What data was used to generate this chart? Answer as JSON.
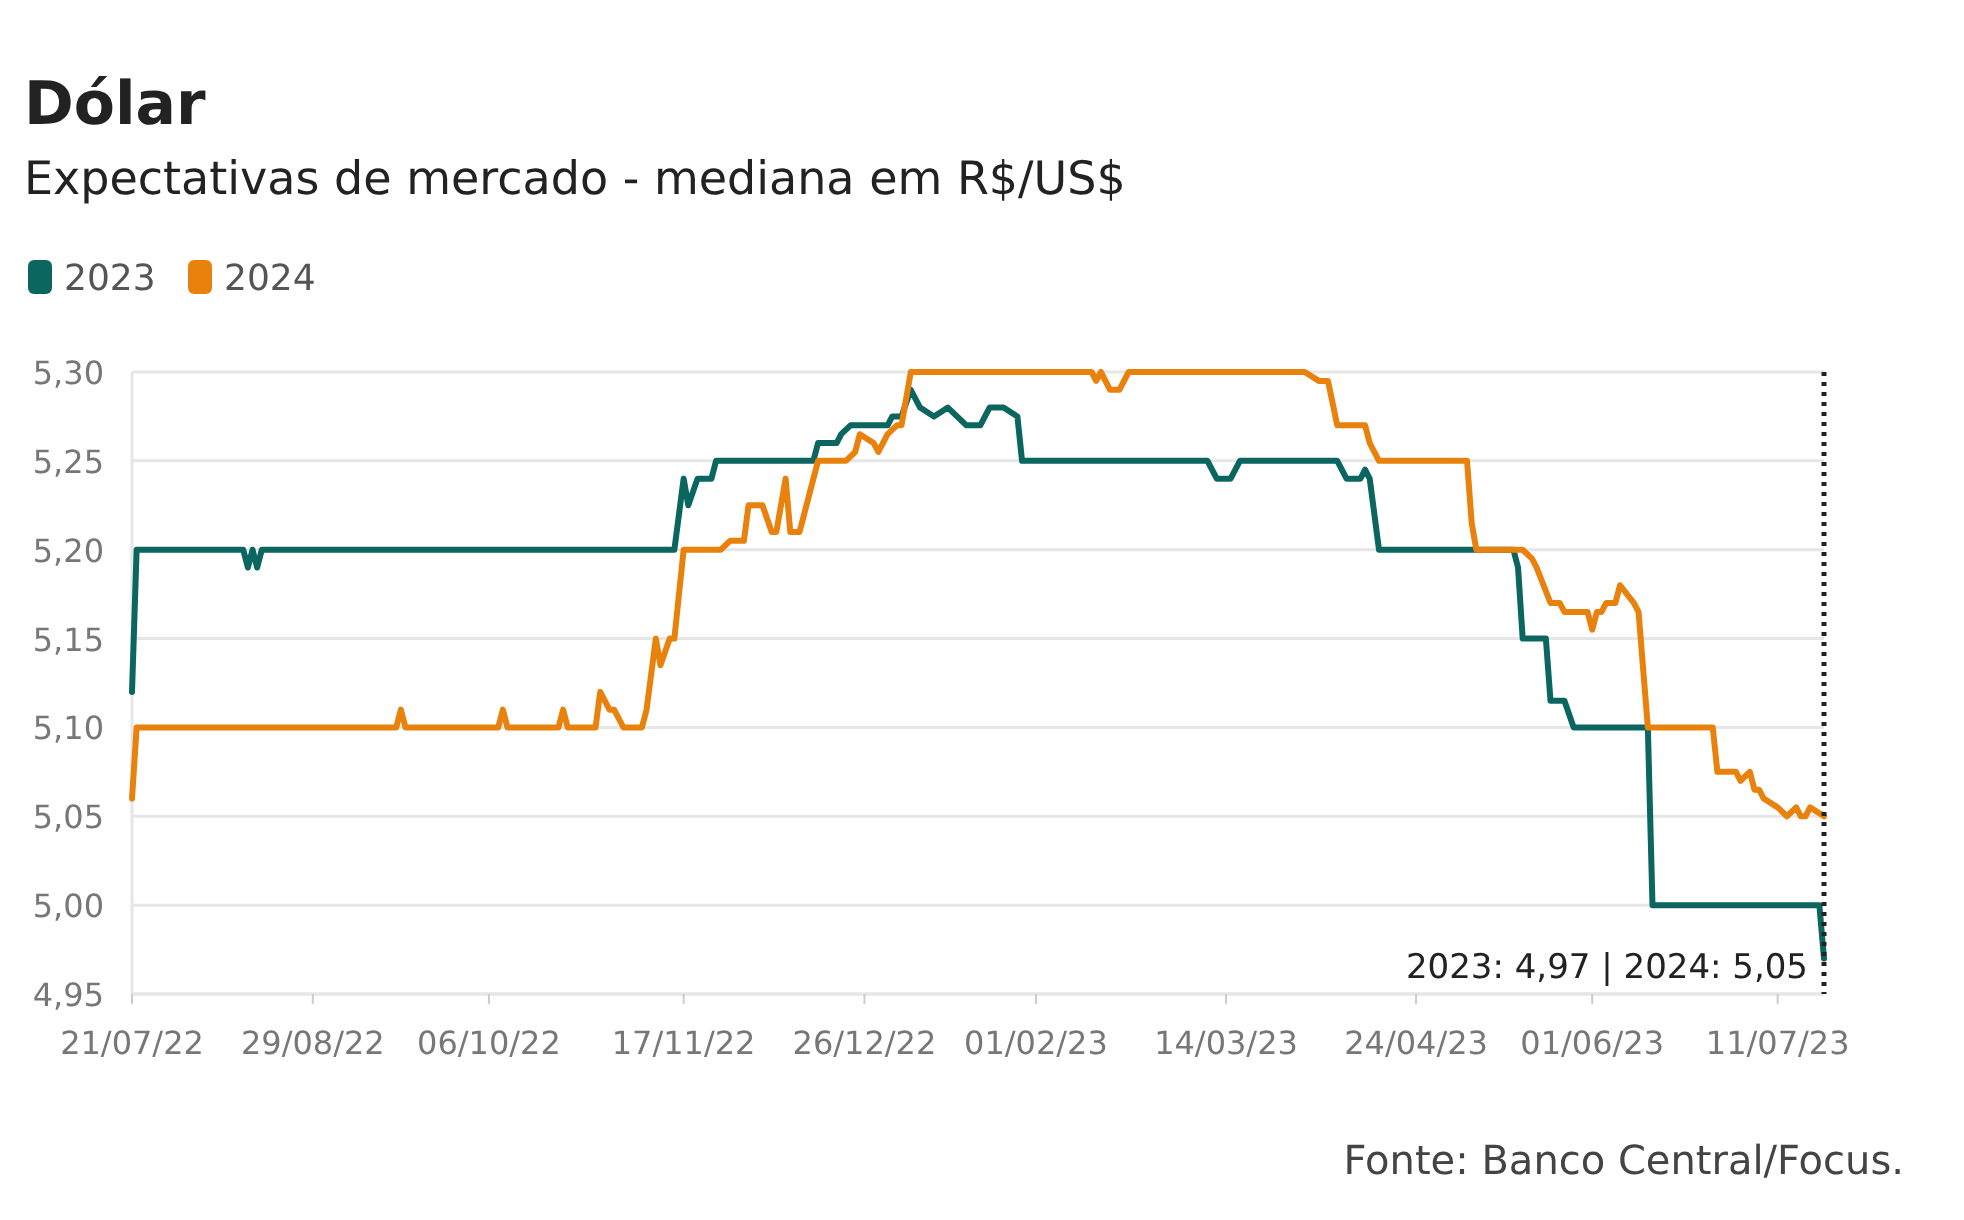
{
  "chart_data": {
    "type": "line",
    "title": "Dólar",
    "subtitle": "Expectativas de mercado - mediana em R$/US$",
    "xlim": [
      "2022-07-21",
      "2023-07-21"
    ],
    "xticks": [
      {
        "value": "2022-07-21",
        "label": "21/07/22"
      },
      {
        "value": "2022-08-29",
        "label": "29/08/22"
      },
      {
        "value": "2022-10-06",
        "label": "06/10/22"
      },
      {
        "value": "2022-11-17",
        "label": "17/11/22"
      },
      {
        "value": "2022-12-26",
        "label": "26/12/22"
      },
      {
        "value": "2023-02-01",
        "label": "01/02/23"
      },
      {
        "value": "2023-03-14",
        "label": "14/03/23"
      },
      {
        "value": "2023-04-24",
        "label": "24/04/23"
      },
      {
        "value": "2023-06-01",
        "label": "01/06/23"
      },
      {
        "value": "2023-07-11",
        "label": "11/07/23"
      }
    ],
    "ylim": [
      4.95,
      5.3
    ],
    "yticks": [
      {
        "value": 4.95,
        "label": "4,95"
      },
      {
        "value": 5.0,
        "label": "5,00"
      },
      {
        "value": 5.05,
        "label": "5,05"
      },
      {
        "value": 5.1,
        "label": "5,10"
      },
      {
        "value": 5.15,
        "label": "5,15"
      },
      {
        "value": 5.2,
        "label": "5,20"
      },
      {
        "value": 5.25,
        "label": "5,25"
      },
      {
        "value": 5.3,
        "label": "5,30"
      }
    ],
    "grid": "y",
    "legend": "top left",
    "line_style": "solid",
    "series": [
      {
        "name": "2023",
        "color": "#0b6660",
        "x": [
          "2022-07-21",
          "2022-07-22",
          "2022-08-14",
          "2022-08-15",
          "2022-08-16",
          "2022-08-17",
          "2022-08-18",
          "2022-11-15",
          "2022-11-17",
          "2022-11-18",
          "2022-11-20",
          "2022-11-23",
          "2022-11-24",
          "2022-12-15",
          "2022-12-16",
          "2022-12-20",
          "2022-12-21",
          "2022-12-23",
          "2022-12-31",
          "2023-01-01",
          "2023-01-03",
          "2023-01-05",
          "2023-01-07",
          "2023-01-10",
          "2023-01-13",
          "2023-01-17",
          "2023-01-20",
          "2023-01-22",
          "2023-01-25",
          "2023-01-28",
          "2023-01-29",
          "2023-03-10",
          "2023-03-12",
          "2023-03-15",
          "2023-03-17",
          "2023-04-07",
          "2023-04-09",
          "2023-04-12",
          "2023-04-13",
          "2023-04-14",
          "2023-04-16",
          "2023-05-15",
          "2023-05-16",
          "2023-05-17",
          "2023-05-22",
          "2023-05-23",
          "2023-05-26",
          "2023-05-28",
          "2023-06-13",
          "2023-06-14",
          "2023-07-20",
          "2023-07-21"
        ],
        "values": [
          5.12,
          5.2,
          5.2,
          5.19,
          5.2,
          5.19,
          5.2,
          5.2,
          5.24,
          5.225,
          5.24,
          5.24,
          5.25,
          5.25,
          5.26,
          5.26,
          5.265,
          5.27,
          5.27,
          5.275,
          5.275,
          5.29,
          5.28,
          5.275,
          5.28,
          5.27,
          5.27,
          5.28,
          5.28,
          5.275,
          5.25,
          5.25,
          5.24,
          5.24,
          5.25,
          5.25,
          5.24,
          5.24,
          5.245,
          5.24,
          5.2,
          5.2,
          5.19,
          5.15,
          5.15,
          5.115,
          5.115,
          5.1,
          5.1,
          5.0,
          5.0,
          4.97
        ]
      },
      {
        "name": "2024",
        "color": "#e8820c",
        "x": [
          "2022-07-21",
          "2022-07-22",
          "2022-09-16",
          "2022-09-17",
          "2022-09-18",
          "2022-10-08",
          "2022-10-09",
          "2022-10-10",
          "2022-10-21",
          "2022-10-22",
          "2022-10-23",
          "2022-10-29",
          "2022-10-30",
          "2022-11-01",
          "2022-11-02",
          "2022-11-04",
          "2022-11-08",
          "2022-11-09",
          "2022-11-11",
          "2022-11-12",
          "2022-11-14",
          "2022-11-15",
          "2022-11-17",
          "2022-11-25",
          "2022-11-27",
          "2022-11-30",
          "2022-12-01",
          "2022-12-04",
          "2022-12-06",
          "2022-12-07",
          "2022-12-09",
          "2022-12-10",
          "2022-12-12",
          "2022-12-15",
          "2022-12-16",
          "2022-12-22",
          "2022-12-24",
          "2022-12-25",
          "2022-12-28",
          "2022-12-29",
          "2022-12-31",
          "2023-01-02",
          "2023-01-03",
          "2023-01-05",
          "2023-02-13",
          "2023-02-14",
          "2023-02-15",
          "2023-02-17",
          "2023-02-19",
          "2023-02-21",
          "2023-03-31",
          "2023-04-03",
          "2023-04-05",
          "2023-04-07",
          "2023-04-13",
          "2023-04-14",
          "2023-04-16",
          "2023-05-05",
          "2023-05-06",
          "2023-05-07",
          "2023-05-17",
          "2023-05-19",
          "2023-05-20",
          "2023-05-23",
          "2023-05-25",
          "2023-05-26",
          "2023-05-31",
          "2023-06-01",
          "2023-06-02",
          "2023-06-03",
          "2023-06-04",
          "2023-06-06",
          "2023-06-07",
          "2023-06-10",
          "2023-06-11",
          "2023-06-13",
          "2023-06-27",
          "2023-06-28",
          "2023-07-02",
          "2023-07-03",
          "2023-07-05",
          "2023-07-06",
          "2023-07-07",
          "2023-07-08",
          "2023-07-11",
          "2023-07-13",
          "2023-07-15",
          "2023-07-16",
          "2023-07-17",
          "2023-07-18",
          "2023-07-21"
        ],
        "values": [
          5.06,
          5.1,
          5.1,
          5.11,
          5.1,
          5.1,
          5.11,
          5.1,
          5.1,
          5.11,
          5.1,
          5.1,
          5.12,
          5.11,
          5.11,
          5.1,
          5.1,
          5.11,
          5.15,
          5.135,
          5.15,
          5.15,
          5.2,
          5.2,
          5.205,
          5.205,
          5.225,
          5.225,
          5.21,
          5.21,
          5.24,
          5.21,
          5.21,
          5.24,
          5.25,
          5.25,
          5.255,
          5.265,
          5.26,
          5.255,
          5.265,
          5.27,
          5.27,
          5.3,
          5.3,
          5.295,
          5.3,
          5.29,
          5.29,
          5.3,
          5.3,
          5.295,
          5.295,
          5.27,
          5.27,
          5.26,
          5.25,
          5.25,
          5.215,
          5.2,
          5.2,
          5.195,
          5.19,
          5.17,
          5.17,
          5.165,
          5.165,
          5.155,
          5.165,
          5.165,
          5.17,
          5.17,
          5.18,
          5.17,
          5.165,
          5.1,
          5.1,
          5.075,
          5.075,
          5.07,
          5.075,
          5.065,
          5.065,
          5.06,
          5.055,
          5.05,
          5.055,
          5.05,
          5.05,
          5.055,
          5.05
        ]
      }
    ],
    "ref_lines": [
      {
        "axis": "x",
        "value": "2023-07-21",
        "label": "2023: 4,97 | 2024: 5,05",
        "line_style": "dotted",
        "color": "#222222"
      }
    ],
    "annotations": [
      "Fonte: Banco Central/Focus."
    ]
  }
}
